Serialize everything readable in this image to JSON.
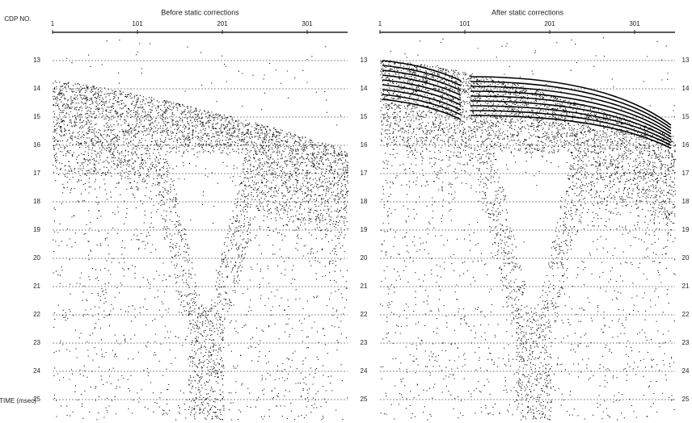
{
  "axis_label": "CDP NO.",
  "time_label": "TIME (msec)",
  "time_ticks": [
    "13",
    "14",
    "15",
    "16",
    "17",
    "18",
    "19",
    "20",
    "21",
    "22",
    "23",
    "24",
    "25"
  ],
  "panels": [
    {
      "title": "Before static corrections",
      "cdp_ticks": [
        "1",
        "101",
        "201",
        "301"
      ]
    },
    {
      "title": "After static corrections",
      "cdp_ticks": [
        "1",
        "101",
        "201",
        "301"
      ]
    }
  ]
}
